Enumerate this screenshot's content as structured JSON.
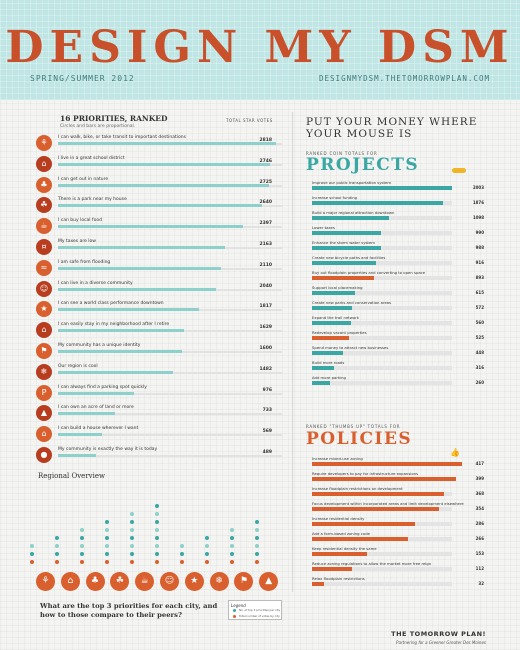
{
  "header": {
    "title": "DESIGN MY DSM",
    "season": "SPRING/SUMMER 2012",
    "url": "DESIGNMYDSM.THETOMORROWPLAN.COM"
  },
  "priorities": {
    "title": "16 PRIORITIES, RANKED",
    "subtitle": "Circles and bars are proportional.",
    "column_head": "TOTAL STAR VOTES"
  },
  "money": {
    "title": "PUT YOUR MONEY WHERE YOUR MOUSE IS"
  },
  "projects": {
    "kicker": "RANKED COIN TOTALS FOR",
    "title": "PROJECTS"
  },
  "policies": {
    "kicker": "RANKED \"THUMBS UP\" TOTALS FOR",
    "title": "POLICIES"
  },
  "regional": {
    "title": "Regional Overview",
    "question": "What are the top 3 priorities for each city, and how to those compare to their peers?",
    "legend_title": "Legend",
    "legend_items": [
      "No. of top 3 priorities per city",
      "Total number of votes by city"
    ]
  },
  "footer": {
    "brand": "THE TOMORROW PLAN!",
    "tagline": "Partnering for a Greener Greater Des Moines"
  },
  "colors": {
    "accent": "#d9602e",
    "teal": "#3aa7a4",
    "light_teal": "#8dd0cc",
    "header_bg": "#bfe6e4"
  },
  "chart_data": [
    {
      "type": "bar",
      "title": "16 PRIORITIES, RANKED",
      "ylabel": "TOTAL STAR VOTES",
      "categories": [
        "I can walk, bike, or take transit to important destinations",
        "I live in a great school district",
        "I can get out in nature",
        "There is a park near my house",
        "I can buy local food",
        "My taxes are low",
        "I am safe from flooding",
        "I can live in a diverse community",
        "I can see a world class performance downtown",
        "I can easily stay in my neighborhood after I retire",
        "My community has a unique identity",
        "Our region is cool",
        "I can always find a parking spot quickly",
        "I can own an acre of land or more",
        "I can build a house wherever I want",
        "My community is exactly the way it is today"
      ],
      "values": [
        2818,
        2746,
        2725,
        2640,
        2397,
        2163,
        2110,
        2040,
        1817,
        1629,
        1600,
        1482,
        976,
        733,
        569,
        489
      ],
      "icons": [
        "bike-icon",
        "school-icon",
        "tree-icon",
        "park-icon",
        "food-icon",
        "piggy-bank-icon",
        "flood-icon",
        "people-icon",
        "theater-icon",
        "home-icon",
        "identity-icon",
        "cool-icon",
        "parking-icon",
        "land-icon",
        "house-icon",
        "community-icon"
      ]
    },
    {
      "type": "bar",
      "title": "PROJECTS",
      "categories": [
        "Improve our public transportation system",
        "Increase school funding",
        "Build a major regional attraction downtown",
        "Lower taxes",
        "Enhance the storm water system",
        "Create new bicycle paths and facilities",
        "Buy out floodplain properties and converting to open space",
        "Support local placemaking",
        "Create new parks and conservation areas",
        "Expand the trail network",
        "Redevelop vacant properties",
        "Spend money to attract new businesses",
        "Build more roads",
        "Add more parking"
      ],
      "values": [
        2003,
        1876,
        1098,
        990,
        988,
        916,
        893,
        615,
        572,
        560,
        525,
        448,
        316,
        260
      ],
      "highlight": [
        false,
        false,
        false,
        false,
        false,
        false,
        true,
        false,
        false,
        false,
        true,
        false,
        false,
        false
      ]
    },
    {
      "type": "bar",
      "title": "POLICIES",
      "categories": [
        "Increase mixed-use zoning",
        "Require developers to pay for infrastructure expansions",
        "Increase floodplain restrictions on development",
        "Focus development within incorporated areas and limit development elsewhere",
        "Increase residential density",
        "Add a form-based zoning code",
        "Keep residential density the same",
        "Reduce zoning regulations to allow the market more free reign",
        "Relax floodplain restrictions"
      ],
      "values": [
        417,
        399,
        368,
        354,
        286,
        266,
        153,
        112,
        32
      ]
    }
  ]
}
